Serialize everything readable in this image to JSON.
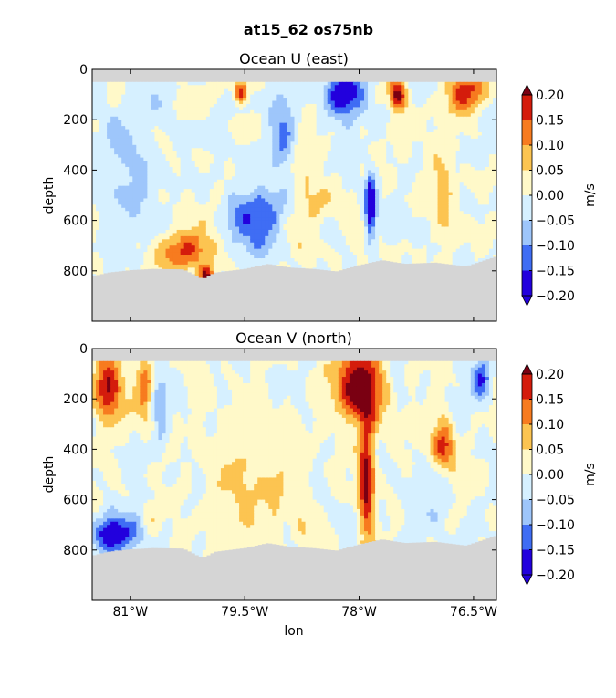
{
  "figure": {
    "title": "at15_62 os75nb"
  },
  "chart_data": [
    {
      "type": "heatmap",
      "title": "Ocean U (east)",
      "ylabel": "depth",
      "xlabel": "",
      "xlim": [
        -81.5,
        -76.2
      ],
      "ylim": [
        1000,
        0
      ],
      "yticks": [
        0,
        200,
        400,
        600,
        800
      ],
      "ytick_labels": [
        "0",
        "200",
        "400",
        "600",
        "800"
      ],
      "colorbar": {
        "label": "m/s",
        "levels": [
          -0.2,
          -0.15,
          -0.1,
          -0.05,
          0.0,
          0.05,
          0.1,
          0.15,
          0.2
        ],
        "tick_labels": [
          "−0.20",
          "−0.15",
          "−0.10",
          "−0.05",
          "0.00",
          "0.05",
          "0.10",
          "0.15",
          "0.20"
        ],
        "colors": [
          "#2200dd",
          "#3f6df4",
          "#9ec6fb",
          "#d6f0ff",
          "#fff9c9",
          "#fcc451",
          "#f77b1f",
          "#d41c0c",
          "#7a0012"
        ]
      },
      "bottom_mask_color": "#d5d5d5",
      "seabed_depth": [
        [
          -81.5,
          820
        ],
        [
          -81.3,
          805
        ],
        [
          -81.0,
          795
        ],
        [
          -80.7,
          790
        ],
        [
          -80.3,
          792
        ],
        [
          -80.05,
          830
        ],
        [
          -79.9,
          805
        ],
        [
          -79.5,
          790
        ],
        [
          -79.2,
          770
        ],
        [
          -78.9,
          785
        ],
        [
          -78.6,
          790
        ],
        [
          -78.3,
          800
        ],
        [
          -78.0,
          775
        ],
        [
          -77.7,
          755
        ],
        [
          -77.4,
          770
        ],
        [
          -77.0,
          765
        ],
        [
          -76.6,
          780
        ],
        [
          -76.4,
          760
        ],
        [
          -76.2,
          740
        ]
      ],
      "features": [
        {
          "x": -78.2,
          "d": 100,
          "sx": 0.25,
          "sd": 90,
          "v": -0.22
        },
        {
          "x": -77.85,
          "d": 540,
          "sx": 0.07,
          "sd": 130,
          "v": -0.23
        },
        {
          "x": -79.4,
          "d": 600,
          "sx": 0.35,
          "sd": 120,
          "v": -0.15
        },
        {
          "x": -79.0,
          "d": 280,
          "sx": 0.2,
          "sd": 180,
          "v": -0.12
        },
        {
          "x": -80.25,
          "d": 720,
          "sx": 0.35,
          "sd": 90,
          "v": 0.15
        },
        {
          "x": -80.0,
          "d": 820,
          "sx": 0.1,
          "sd": 40,
          "v": 0.2
        },
        {
          "x": -79.55,
          "d": 90,
          "sx": 0.08,
          "sd": 40,
          "v": 0.2
        },
        {
          "x": -77.5,
          "d": 100,
          "sx": 0.1,
          "sd": 60,
          "v": 0.22
        },
        {
          "x": -76.6,
          "d": 100,
          "sx": 0.25,
          "sd": 80,
          "v": 0.17
        },
        {
          "x": -76.9,
          "d": 500,
          "sx": 0.15,
          "sd": 200,
          "v": 0.07
        },
        {
          "x": -81.0,
          "d": 350,
          "sx": 0.4,
          "sd": 250,
          "v": -0.07
        },
        {
          "x": -78.7,
          "d": 450,
          "sx": 0.25,
          "sd": 250,
          "v": 0.06
        }
      ],
      "noise_amplitude": 0.05
    },
    {
      "type": "heatmap",
      "title": "Ocean V (north)",
      "ylabel": "depth",
      "xlabel": "lon",
      "xlim": [
        -81.5,
        -76.2
      ],
      "ylim": [
        1000,
        0
      ],
      "xticks": [
        -81.0,
        -79.5,
        -78.0,
        -76.5
      ],
      "xtick_labels": [
        "81°W",
        "79.5°W",
        "78°W",
        "76.5°W"
      ],
      "yticks": [
        0,
        200,
        400,
        600,
        800
      ],
      "ytick_labels": [
        "0",
        "200",
        "400",
        "600",
        "800"
      ],
      "colorbar": {
        "label": "m/s",
        "levels": [
          -0.2,
          -0.15,
          -0.1,
          -0.05,
          0.0,
          0.05,
          0.1,
          0.15,
          0.2
        ],
        "tick_labels": [
          "−0.20",
          "−0.15",
          "−0.10",
          "−0.05",
          "0.00",
          "0.05",
          "0.10",
          "0.15",
          "0.20"
        ],
        "colors": [
          "#2200dd",
          "#3f6df4",
          "#9ec6fb",
          "#d6f0ff",
          "#fff9c9",
          "#fcc451",
          "#f77b1f",
          "#d41c0c",
          "#7a0012"
        ]
      },
      "bottom_mask_color": "#d5d5d5",
      "seabed_depth": [
        [
          -81.5,
          820
        ],
        [
          -81.3,
          805
        ],
        [
          -81.0,
          795
        ],
        [
          -80.7,
          790
        ],
        [
          -80.3,
          792
        ],
        [
          -80.05,
          830
        ],
        [
          -79.9,
          805
        ],
        [
          -79.5,
          790
        ],
        [
          -79.2,
          770
        ],
        [
          -78.9,
          785
        ],
        [
          -78.6,
          790
        ],
        [
          -78.3,
          800
        ],
        [
          -78.0,
          775
        ],
        [
          -77.7,
          755
        ],
        [
          -77.4,
          770
        ],
        [
          -77.0,
          765
        ],
        [
          -76.6,
          780
        ],
        [
          -76.4,
          760
        ],
        [
          -76.2,
          740
        ]
      ],
      "features": [
        {
          "x": -78.0,
          "d": 150,
          "sx": 0.3,
          "sd": 140,
          "v": 0.26
        },
        {
          "x": -77.9,
          "d": 500,
          "sx": 0.1,
          "sd": 250,
          "v": 0.22
        },
        {
          "x": -81.3,
          "d": 150,
          "sx": 0.2,
          "sd": 150,
          "v": 0.18
        },
        {
          "x": -80.8,
          "d": 150,
          "sx": 0.1,
          "sd": 120,
          "v": 0.15
        },
        {
          "x": -76.9,
          "d": 380,
          "sx": 0.15,
          "sd": 100,
          "v": 0.17
        },
        {
          "x": -81.2,
          "d": 740,
          "sx": 0.3,
          "sd": 70,
          "v": -0.2
        },
        {
          "x": -80.6,
          "d": 250,
          "sx": 0.1,
          "sd": 150,
          "v": -0.08
        },
        {
          "x": -76.4,
          "d": 120,
          "sx": 0.12,
          "sd": 80,
          "v": -0.18
        },
        {
          "x": -79.4,
          "d": 550,
          "sx": 0.6,
          "sd": 250,
          "v": 0.06
        },
        {
          "x": -77.1,
          "d": 650,
          "sx": 0.3,
          "sd": 150,
          "v": -0.04
        }
      ],
      "noise_amplitude": 0.05
    }
  ]
}
